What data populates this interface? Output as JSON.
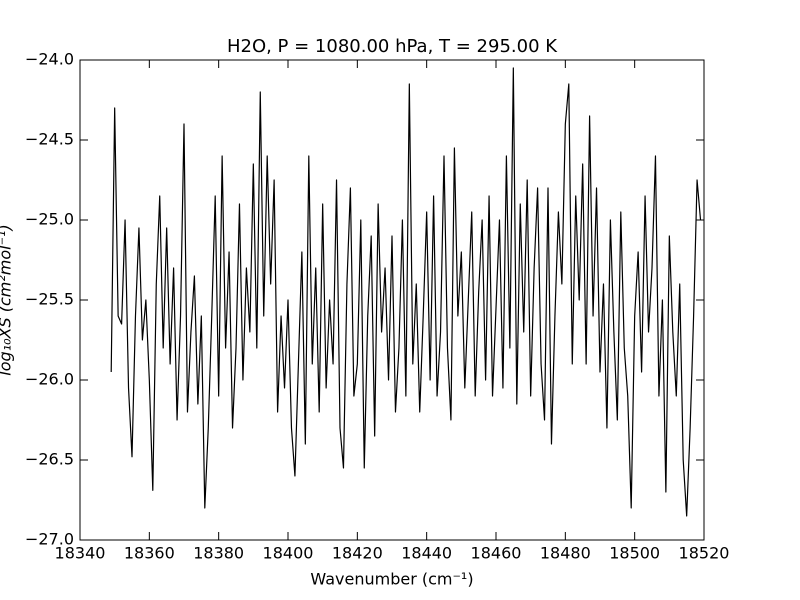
{
  "chart_data": {
    "type": "line",
    "title": "H2O, P = 1080.00 hPa, T = 295.00 K",
    "x_label": "Wavenumber (cm⁻¹)",
    "y_label": "log₁₀XS (cm²mol⁻¹)",
    "xlim": [
      18340,
      18520
    ],
    "xticks": [
      18340,
      18360,
      18380,
      18400,
      18420,
      18440,
      18460,
      18480,
      18500,
      18520
    ],
    "ylim": [
      -27,
      -24
    ],
    "yticks": [
      {
        "value": -27,
        "label": "−27.0"
      },
      {
        "value": -26.5,
        "label": "−26.5"
      },
      {
        "value": -26,
        "label": "−26.0"
      },
      {
        "value": -25.5,
        "label": "−25.5"
      },
      {
        "value": -25,
        "label": "−25.0"
      },
      {
        "value": -24.5,
        "label": "−24.5"
      },
      {
        "value": -24,
        "label": "−24.0"
      }
    ],
    "color": "#000000",
    "x": [
      18349,
      18350,
      18351,
      18352,
      18353,
      18354,
      18355,
      18356,
      18357,
      18358,
      18359,
      18360,
      18361,
      18362,
      18363,
      18364,
      18365,
      18366,
      18367,
      18368,
      18369,
      18370,
      18371,
      18372,
      18373,
      18374,
      18375,
      18376,
      18377,
      18378,
      18379,
      18380,
      18381,
      18382,
      18383,
      18384,
      18385,
      18386,
      18387,
      18388,
      18389,
      18390,
      18391,
      18392,
      18393,
      18394,
      18395,
      18396,
      18397,
      18398,
      18399,
      18400,
      18401,
      18402,
      18403,
      18404,
      18405,
      18406,
      18407,
      18408,
      18409,
      18410,
      18411,
      18412,
      18413,
      18414,
      18415,
      18416,
      18417,
      18418,
      18419,
      18420,
      18421,
      18422,
      18423,
      18424,
      18425,
      18426,
      18427,
      18428,
      18429,
      18430,
      18431,
      18432,
      18433,
      18434,
      18435,
      18436,
      18437,
      18438,
      18439,
      18440,
      18441,
      18442,
      18443,
      18444,
      18445,
      18446,
      18447,
      18448,
      18449,
      18450,
      18451,
      18452,
      18453,
      18454,
      18455,
      18456,
      18457,
      18458,
      18459,
      18460,
      18461,
      18462,
      18463,
      18464,
      18465,
      18466,
      18467,
      18468,
      18469,
      18470,
      18471,
      18472,
      18473,
      18474,
      18475,
      18476,
      18477,
      18478,
      18479,
      18480,
      18481,
      18482,
      18483,
      18484,
      18485,
      18486,
      18487,
      18488,
      18489,
      18490,
      18491,
      18492,
      18493,
      18494,
      18495,
      18496,
      18497,
      18498,
      18499,
      18500,
      18501,
      18502,
      18503,
      18504,
      18505,
      18506,
      18507,
      18508,
      18509,
      18510,
      18511,
      18512,
      18513,
      18514,
      18515,
      18516,
      18517,
      18518,
      18519
    ],
    "values": [
      -25.95,
      -24.3,
      -25.6,
      -25.65,
      -25.0,
      -26.05,
      -26.48,
      -25.6,
      -25.05,
      -25.75,
      -25.5,
      -26.0,
      -26.69,
      -25.4,
      -24.85,
      -25.8,
      -25.05,
      -25.9,
      -25.3,
      -26.25,
      -25.6,
      -24.4,
      -26.2,
      -25.7,
      -25.35,
      -26.15,
      -25.6,
      -26.8,
      -26.3,
      -25.6,
      -24.85,
      -26.1,
      -24.6,
      -25.8,
      -25.2,
      -26.3,
      -25.8,
      -24.9,
      -26.0,
      -25.3,
      -25.7,
      -24.65,
      -25.8,
      -24.2,
      -25.6,
      -24.6,
      -25.4,
      -24.75,
      -26.2,
      -25.6,
      -26.05,
      -25.5,
      -26.3,
      -26.6,
      -25.9,
      -25.2,
      -26.4,
      -24.6,
      -25.9,
      -25.3,
      -26.2,
      -24.9,
      -26.05,
      -25.5,
      -25.9,
      -24.75,
      -26.3,
      -26.55,
      -25.4,
      -24.8,
      -26.1,
      -25.9,
      -25.0,
      -26.55,
      -25.6,
      -25.1,
      -26.35,
      -24.9,
      -25.7,
      -25.3,
      -26.0,
      -25.1,
      -26.2,
      -25.8,
      -25.0,
      -26.1,
      -24.15,
      -25.9,
      -25.4,
      -26.2,
      -25.6,
      -24.95,
      -26.0,
      -24.85,
      -26.1,
      -25.7,
      -24.6,
      -25.8,
      -26.25,
      -24.55,
      -25.6,
      -25.2,
      -26.05,
      -25.5,
      -24.95,
      -26.1,
      -25.45,
      -25.0,
      -26.0,
      -24.85,
      -26.1,
      -25.55,
      -25.0,
      -26.05,
      -24.6,
      -25.8,
      -24.05,
      -26.15,
      -24.9,
      -25.7,
      -24.75,
      -26.1,
      -25.3,
      -24.8,
      -25.9,
      -26.25,
      -24.8,
      -26.4,
      -25.6,
      -24.95,
      -25.4,
      -24.4,
      -24.15,
      -25.9,
      -24.85,
      -25.5,
      -24.65,
      -25.9,
      -24.35,
      -25.6,
      -24.8,
      -25.95,
      -25.4,
      -26.3,
      -25.0,
      -25.7,
      -26.25,
      -24.95,
      -25.8,
      -26.1,
      -26.8,
      -25.6,
      -25.2,
      -25.95,
      -24.85,
      -25.7,
      -25.3,
      -24.6,
      -26.1,
      -25.5,
      -26.7,
      -25.1,
      -25.7,
      -26.1,
      -25.4,
      -26.5,
      -26.85,
      -26.3,
      -25.6,
      -24.75,
      -25.0
    ]
  }
}
